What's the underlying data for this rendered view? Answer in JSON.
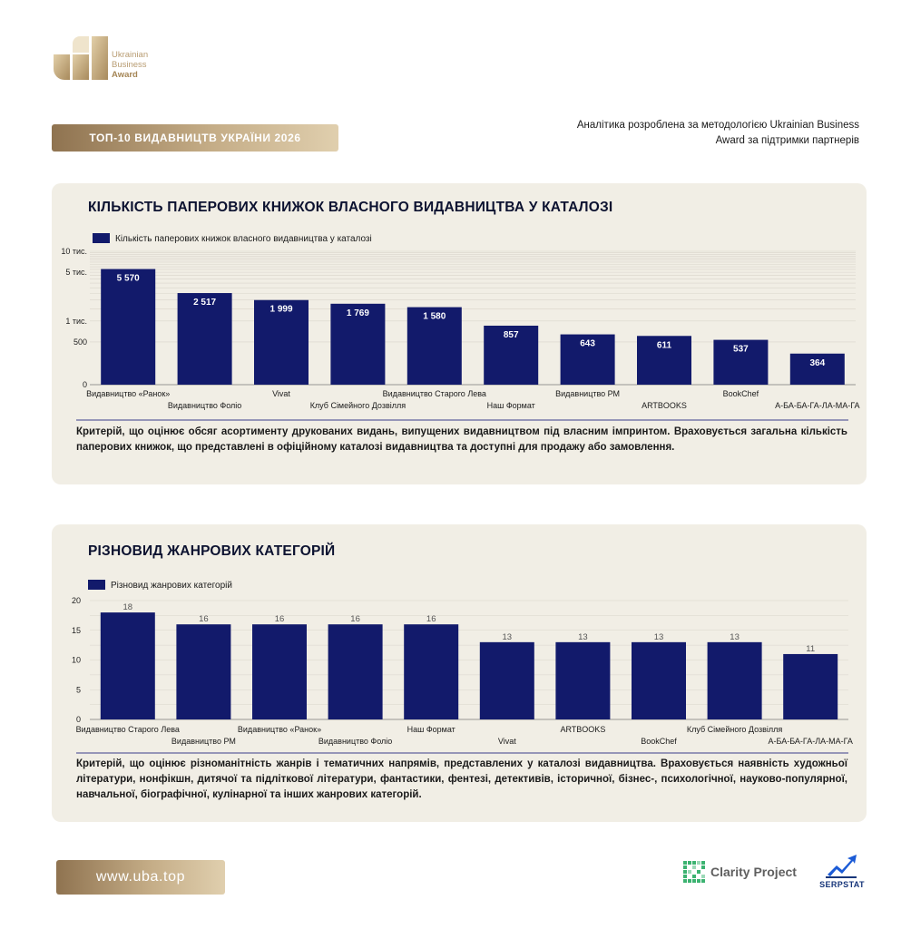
{
  "brand": {
    "line1": "Ukrainian",
    "line2": "Business",
    "line3": "Award"
  },
  "header": {
    "title": "ТОП-10 ВИДАВНИЦТВ УКРАЇНИ 2026",
    "note": "Аналітика розроблена за методологією Ukrainian Business Award за підтримки партнерів"
  },
  "colors": {
    "bar": "#121a6b",
    "gold_start": "#8f7350",
    "gold_end": "#e0cfae",
    "card_bg": "#f1eee5"
  },
  "sections": [
    {
      "title": "КІЛЬКІСТЬ ПАПЕРОВИХ КНИЖОК ВЛАСНОГО ВИДАВНИЦТВА У КАТАЛОЗІ",
      "description": "Критерій, що оцінює обсяг асортименту друкованих видань, випущених видавництвом під власним імпринтом. Враховується загальна кількість паперових книжок, що представлені в офіційному каталозі видавництва та доступні для продажу або замовлення."
    },
    {
      "title": "РІЗНОВИД ЖАНРОВИХ КАТЕГОРІЙ",
      "description": "Критерій, що оцінює різноманітність жанрів і тематичних напрямів, представлених у каталозі видавництва. Враховується наявність художньої літератури, нонфікшн, дитячої та підліткової літератури, фантастики, фентезі, детективів, історичної, бізнес-, психологічної, науково-популярної, навчальної, біографічної, кулінарної та інших жанрових категорій."
    }
  ],
  "chart_data": [
    {
      "type": "bar",
      "scale": "log",
      "legend": "Кількість паперових книжок власного видавництва у каталозі",
      "legend_position": "top-left",
      "categories": [
        "Видавництво «Ранок»",
        "Видавництво Фоліо",
        "Vivat",
        "Клуб Сімейного Дозвілля",
        "Видавництво Старого Лева",
        "Наш Формат",
        "Видавництво РМ",
        "ARTBOOKS",
        "BookChef",
        "А-БА-БА-ГА-ЛА-МА-ГА"
      ],
      "values": [
        5570,
        2517,
        1999,
        1769,
        1580,
        857,
        643,
        611,
        537,
        364
      ],
      "value_labels": [
        "5 570",
        "2 517",
        "1 999",
        "1 769",
        "1 580",
        "857",
        "643",
        "611",
        "537",
        "364"
      ],
      "yticks": [
        {
          "value": 0,
          "label": "0"
        },
        {
          "value": 500,
          "label": "500"
        },
        {
          "value": 1000,
          "label": "1 тис."
        },
        {
          "value": 5000,
          "label": "5 тис."
        },
        {
          "value": 10000,
          "label": "10 тис."
        }
      ],
      "ylim": [
        0,
        10000
      ],
      "grid": true
    },
    {
      "type": "bar",
      "legend": "Різновид жанрових категорій",
      "legend_position": "top-left",
      "categories": [
        "Видавництво Старого Лева",
        "Видавництво РМ",
        "Видавництво «Ранок»",
        "Видавництво Фоліо",
        "Наш Формат",
        "Vivat",
        "ARTBOOKS",
        "BookChef",
        "Клуб Сімейного Дозвілля",
        "А-БА-БА-ГА-ЛА-МА-ГА"
      ],
      "values": [
        18,
        16,
        16,
        16,
        16,
        13,
        13,
        13,
        13,
        11
      ],
      "yticks": [
        {
          "value": 0,
          "label": "0"
        },
        {
          "value": 5,
          "label": "5"
        },
        {
          "value": 10,
          "label": "10"
        },
        {
          "value": 15,
          "label": "15"
        },
        {
          "value": 20,
          "label": "20"
        }
      ],
      "ylim": [
        0,
        20
      ],
      "grid": true
    }
  ],
  "footer": {
    "url": "www.uba.top",
    "partner1": "Clarity Project",
    "partner2": "SERPSTAT"
  }
}
